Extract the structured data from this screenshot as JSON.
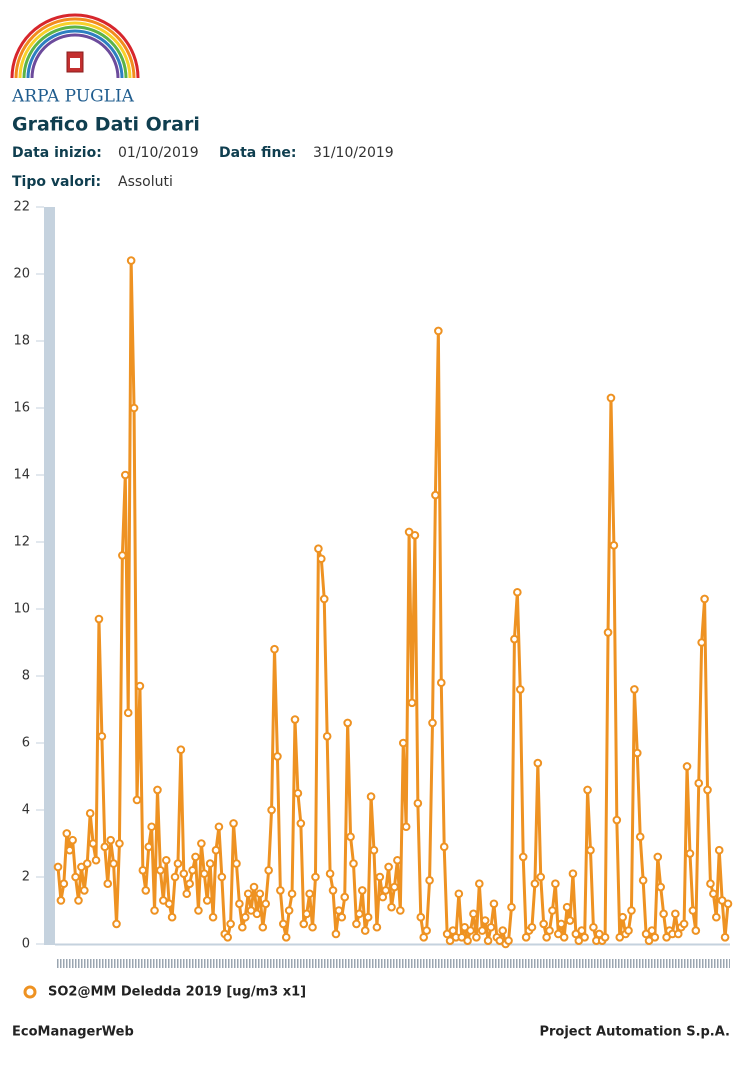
{
  "header": {
    "logo_text": "ARPA PUGLIA"
  },
  "chart_data": {
    "type": "line",
    "title": "Grafico Dati Orari",
    "info": [
      {
        "label": "Data inizio:",
        "value": "01/10/2019"
      },
      {
        "label": "Data fine:",
        "value": "31/10/2019"
      },
      {
        "label": "Tipo valori:",
        "value": "Assoluti"
      }
    ],
    "ylim": [
      0,
      22
    ],
    "yticks": [
      0,
      2,
      4,
      6,
      8,
      10,
      12,
      14,
      16,
      18,
      20,
      22
    ],
    "grid": false,
    "series": [
      {
        "name": "SO2@MM Deledda 2019 [ug/m3 x1]",
        "color": "#ee9222",
        "values": [
          2.3,
          1.3,
          1.8,
          3.3,
          2.8,
          3.1,
          2.0,
          1.3,
          2.3,
          1.6,
          2.4,
          3.9,
          3.0,
          2.5,
          9.7,
          6.2,
          2.9,
          1.8,
          3.1,
          2.4,
          0.6,
          3.0,
          11.6,
          14.0,
          6.9,
          20.4,
          16.0,
          4.3,
          7.7,
          2.2,
          1.6,
          2.9,
          3.5,
          1.0,
          4.6,
          2.2,
          1.3,
          2.5,
          1.2,
          0.8,
          2.0,
          2.4,
          5.8,
          2.1,
          1.5,
          1.8,
          2.2,
          2.6,
          1.0,
          3.0,
          2.1,
          1.3,
          2.4,
          0.8,
          2.8,
          3.5,
          2.0,
          0.3,
          0.2,
          0.6,
          3.6,
          2.4,
          1.2,
          0.5,
          0.8,
          1.5,
          1.0,
          1.7,
          0.9,
          1.5,
          0.5,
          1.2,
          2.2,
          4.0,
          8.8,
          5.6,
          1.6,
          0.6,
          0.2,
          1.0,
          1.5,
          6.7,
          4.5,
          3.6,
          0.6,
          0.9,
          1.5,
          0.5,
          2.0,
          11.8,
          11.5,
          10.3,
          6.2,
          2.1,
          1.6,
          0.3,
          1.0,
          0.8,
          1.4,
          6.6,
          3.2,
          2.4,
          0.6,
          0.9,
          1.6,
          0.4,
          0.8,
          4.4,
          2.8,
          0.5,
          2.0,
          1.4,
          1.6,
          2.3,
          1.1,
          1.7,
          2.5,
          1.0,
          6.0,
          3.5,
          12.3,
          7.2,
          12.2,
          4.2,
          0.8,
          0.2,
          0.4,
          1.9,
          6.6,
          13.4,
          18.3,
          7.8,
          2.9,
          0.3,
          0.1,
          0.4,
          0.2,
          1.5,
          0.2,
          0.5,
          0.1,
          0.4,
          0.9,
          0.2,
          1.8,
          0.4,
          0.7,
          0.1,
          0.5,
          1.2,
          0.2,
          0.1,
          0.4,
          0.0,
          0.1,
          1.1,
          9.1,
          10.5,
          7.6,
          2.6,
          0.2,
          0.4,
          0.5,
          1.8,
          5.4,
          2.0,
          0.6,
          0.2,
          0.4,
          1.0,
          1.8,
          0.3,
          0.6,
          0.2,
          1.1,
          0.7,
          2.1,
          0.3,
          0.1,
          0.4,
          0.2,
          4.6,
          2.8,
          0.5,
          0.1,
          0.3,
          0.1,
          0.2,
          9.3,
          16.3,
          11.9,
          3.7,
          0.2,
          0.8,
          0.3,
          0.4,
          1.0,
          7.6,
          5.7,
          3.2,
          1.9,
          0.3,
          0.1,
          0.4,
          0.2,
          2.6,
          1.7,
          0.9,
          0.2,
          0.4,
          0.3,
          0.9,
          0.3,
          0.5,
          0.6,
          5.3,
          2.7,
          1.0,
          0.4,
          4.8,
          9.0,
          10.3,
          4.6,
          1.8,
          1.5,
          0.8,
          2.8,
          1.3,
          0.2,
          1.2
        ]
      }
    ]
  },
  "footer": {
    "left": "EcoManagerWeb",
    "right": "Project Automation S.p.A."
  }
}
